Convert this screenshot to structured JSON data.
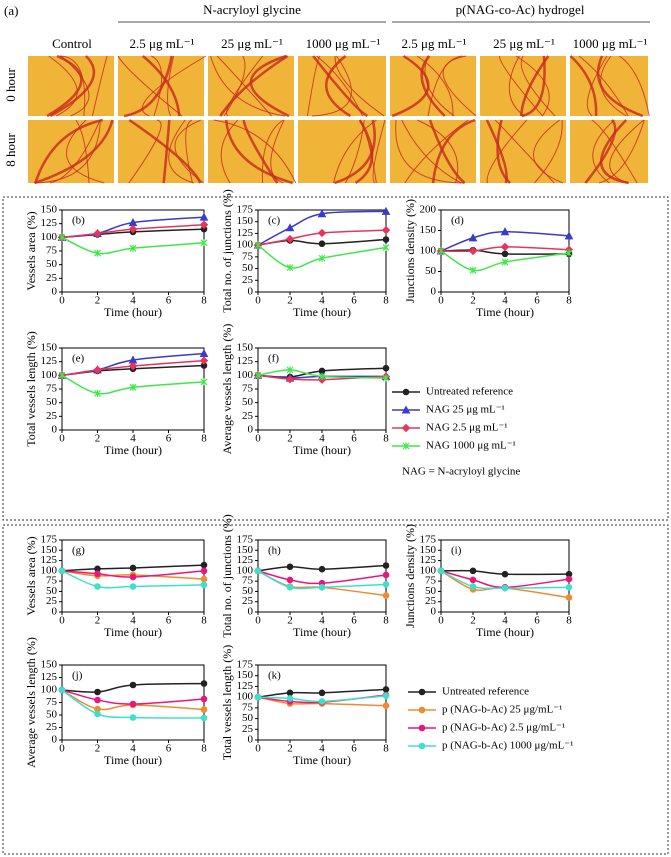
{
  "panel_a": {
    "label": "(a)",
    "groups": [
      "N-acryloyl glycine",
      "p(NAG-co-Ac) hydrogel"
    ],
    "columns": [
      "Control",
      "2.5 μg mL⁻¹",
      "25 μg mL⁻¹",
      "1000 μg mL⁻¹",
      "2.5 μg mL⁻¹",
      "25 μg mL⁻¹",
      "1000 μg mL⁻¹"
    ],
    "rows": [
      "0 hour",
      "8 hour"
    ]
  },
  "chart_data": [
    {
      "type": "line",
      "x": [
        0,
        2,
        4,
        8
      ],
      "xlim": [
        0,
        8
      ],
      "xticks": [
        0,
        2,
        4,
        6,
        8
      ],
      "xlabel": "Time (hour)",
      "note": "NAG = N-acryloyl glycine",
      "panels": [
        {
          "label": "(b)",
          "ylabel": "Vessels area (%)",
          "ylim": [
            0,
            150
          ],
          "yticks": [
            0,
            25,
            50,
            75,
            100,
            125,
            150
          ]
        },
        {
          "label": "(c)",
          "ylabel": "Total no. of junctions (%)",
          "ylim": [
            0,
            175
          ],
          "yticks": [
            0,
            25,
            50,
            75,
            100,
            125,
            150,
            175
          ]
        },
        {
          "label": "(d)",
          "ylabel": "Junctions density (%)",
          "ylim": [
            0,
            200
          ],
          "yticks": [
            0,
            50,
            100,
            150,
            200
          ]
        },
        {
          "label": "(e)",
          "ylabel": "Total vessels length (%)",
          "ylim": [
            0,
            150
          ],
          "yticks": [
            0,
            25,
            50,
            75,
            100,
            125,
            150
          ]
        },
        {
          "label": "(f)",
          "ylabel": "Average vessels length (%)",
          "ylim": [
            0,
            150
          ],
          "yticks": [
            0,
            25,
            50,
            75,
            100,
            125,
            150
          ]
        }
      ],
      "series": [
        {
          "name": "Untreated reference",
          "color": "#222222",
          "marker": "circle",
          "values": [
            [
              100,
              105,
              110,
              115
            ],
            [
              100,
              110,
              103,
              112
            ],
            [
              100,
              102,
              93,
              93
            ],
            [
              100,
              108,
              112,
              118
            ],
            [
              100,
              97,
              108,
              113
            ]
          ]
        },
        {
          "name": "NAG 25 μg mL⁻¹",
          "color": "#3a3acc",
          "marker": "triangle",
          "values": [
            [
              100,
              107,
              127,
              137
            ],
            [
              100,
              137,
              167,
              172
            ],
            [
              100,
              132,
              147,
              137
            ],
            [
              100,
              110,
              128,
              140
            ],
            [
              100,
              95,
              98,
              98
            ]
          ]
        },
        {
          "name": "NAG 2.5 μg mL⁻¹",
          "color": "#e8345a",
          "marker": "diamond",
          "values": [
            [
              100,
              107,
              115,
              123
            ],
            [
              100,
              113,
              126,
              132
            ],
            [
              100,
              100,
              110,
              103
            ],
            [
              100,
              110,
              117,
              127
            ],
            [
              100,
              93,
              92,
              98
            ]
          ]
        },
        {
          "name": "NAG 1000 μg mL⁻¹",
          "color": "#3ee84a",
          "marker": "star",
          "values": [
            [
              100,
              71,
              80,
              90
            ],
            [
              100,
              52,
              72,
              95
            ],
            [
              100,
              53,
              73,
              95
            ],
            [
              100,
              67,
              78,
              88
            ],
            [
              100,
              110,
              98,
              95
            ]
          ]
        }
      ]
    },
    {
      "type": "line",
      "x": [
        0,
        2,
        4,
        8
      ],
      "xlim": [
        0,
        8
      ],
      "xticks": [
        0,
        2,
        4,
        6,
        8
      ],
      "xlabel": "Time (hour)",
      "panels": [
        {
          "label": "(g)",
          "ylabel": "Vessels area (%)",
          "ylim": [
            0,
            175
          ],
          "yticks": [
            0,
            25,
            50,
            75,
            100,
            125,
            150,
            175
          ]
        },
        {
          "label": "(h)",
          "ylabel": "Total no. of junctions (%)",
          "ylim": [
            0,
            175
          ],
          "yticks": [
            0,
            25,
            50,
            75,
            100,
            125,
            150,
            175
          ]
        },
        {
          "label": "(i)",
          "ylabel": "Junctions density (%)",
          "ylim": [
            0,
            175
          ],
          "yticks": [
            0,
            25,
            50,
            75,
            100,
            125,
            150,
            175
          ]
        },
        {
          "label": "(j)",
          "ylabel": "Average vessels length (%)",
          "ylim": [
            0,
            150
          ],
          "yticks": [
            0,
            25,
            50,
            75,
            100,
            125,
            150
          ]
        },
        {
          "label": "(k)",
          "ylabel": "Total vessels length (%)",
          "ylim": [
            0,
            175
          ],
          "yticks": [
            0,
            25,
            50,
            75,
            100,
            125,
            150,
            175
          ]
        }
      ],
      "series": [
        {
          "name": "Untreated reference",
          "color": "#222222",
          "marker": "circle",
          "values": [
            [
              100,
              105,
              107,
              114
            ],
            [
              100,
              110,
              104,
              113
            ],
            [
              100,
              100,
              92,
              92
            ],
            [
              100,
              96,
              110,
              113
            ],
            [
              100,
              110,
              110,
              118
            ]
          ]
        },
        {
          "name": "p (NAG-b-Ac) 25 μg/mL⁻¹",
          "color": "#f08a30",
          "marker": "circle",
          "values": [
            [
              100,
              88,
              90,
              80
            ],
            [
              100,
              62,
              60,
              40
            ],
            [
              100,
              55,
              58,
              35
            ],
            [
              100,
              62,
              70,
              61
            ],
            [
              100,
              85,
              85,
              80
            ]
          ]
        },
        {
          "name": "p (NAG-b-Ac) 2.5 μg/mL⁻¹",
          "color": "#e8177e",
          "marker": "circle",
          "values": [
            [
              100,
              93,
              85,
              100
            ],
            [
              100,
              78,
              70,
              90
            ],
            [
              100,
              78,
              60,
              80
            ],
            [
              100,
              80,
              72,
              82
            ],
            [
              100,
              90,
              88,
              105
            ]
          ]
        },
        {
          "name": "p (NAG-b-Ac) 1000 μg/mL⁻¹",
          "color": "#3ee0cc",
          "marker": "circle",
          "values": [
            [
              100,
              62,
              62,
              66
            ],
            [
              100,
              60,
              60,
              67
            ],
            [
              100,
              62,
              58,
              60
            ],
            [
              100,
              52,
              45,
              44
            ],
            [
              100,
              97,
              90,
              103
            ]
          ]
        }
      ]
    }
  ]
}
